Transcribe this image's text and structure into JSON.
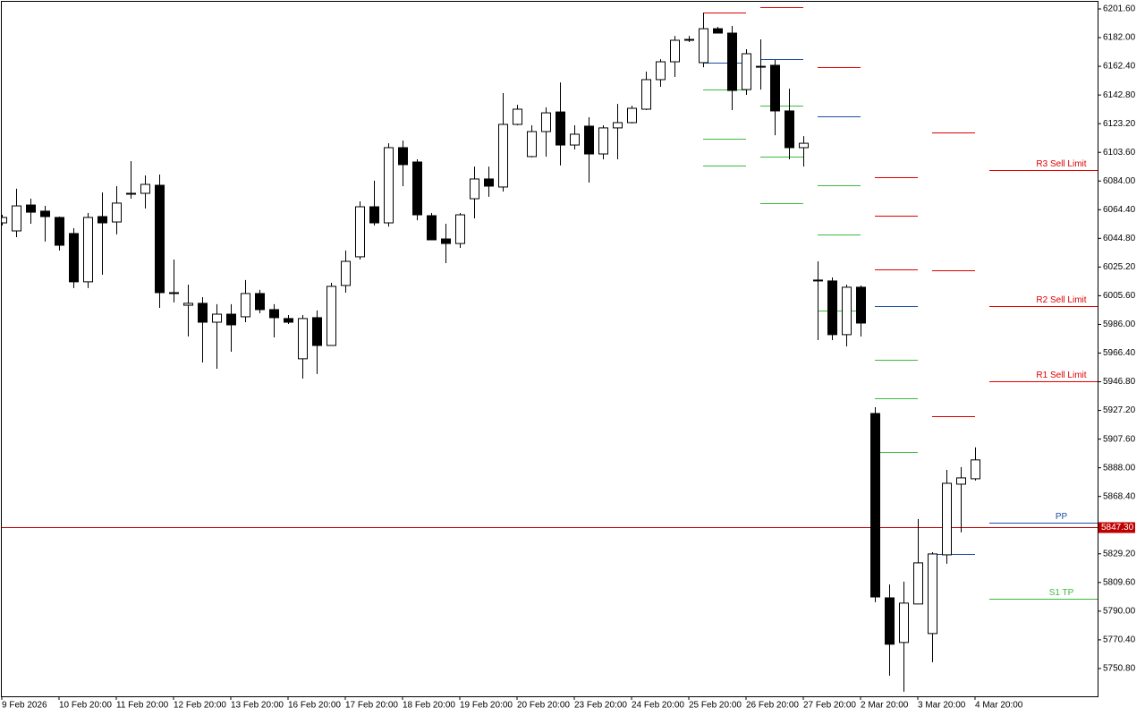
{
  "chart_data": {
    "type": "candlestick",
    "categories": [
      "9 Feb 2026",
      null,
      null,
      null,
      "10 Feb 20:00",
      null,
      null,
      null,
      "11 Feb 20:00",
      null,
      null,
      null,
      "12 Feb 20:00",
      null,
      null,
      null,
      "13 Feb 20:00",
      null,
      null,
      null,
      "16 Feb 20:00",
      null,
      null,
      null,
      "17 Feb 20:00",
      null,
      null,
      null,
      "18 Feb 20:00",
      null,
      null,
      null,
      "19 Feb 20:00",
      null,
      null,
      null,
      "20 Feb 20:00",
      null,
      null,
      null,
      "23 Feb 20:00",
      null,
      null,
      null,
      "24 Feb 20:00",
      null,
      null,
      null,
      "25 Feb 20:00",
      null,
      null,
      null,
      "26 Feb 20:00",
      null,
      null,
      null,
      "27 Feb 20:00",
      null,
      null,
      null,
      "2 Mar 20:00",
      null,
      null,
      null,
      "3 Mar 20:00",
      null,
      null,
      null,
      "4 Mar 20:00"
    ],
    "open": [
      6055.4,
      6049.9,
      6067.6,
      6063.4,
      6059.1,
      6048.1,
      6015.1,
      6059.7,
      6056.0,
      6075.0,
      6075.6,
      6081.1,
      6007.7,
      5999.1,
      6000.4,
      5987.5,
      5993.0,
      5991.2,
      6007.1,
      5996.1,
      5990.0,
      5962.5,
      5990.6,
      5971.6,
      6012.6,
      6032.2,
      6066.4,
      6055.4,
      6106.8,
      6097.0,
      6060.3,
      6044.4,
      6041.3,
      6071.9,
      6085.4,
      6079.9,
      6122.7,
      6100.7,
      6117.8,
      6131.2,
      6108.6,
      6121.5,
      6102.5,
      6120.3,
      6123.9,
      6133.1,
      6153.3,
      6165.5,
      6180.2,
      6164.9,
      6188.1,
      6185.1,
      6146.5,
      6161.8,
      6163.1,
      6131.9,
      6106.8,
      6016.3,
      6015.7,
      5979.0,
      6011.4,
      5925.1,
      5799.1,
      5768.6,
      5794.9,
      5774.7,
      5828.5,
      5876.8,
      5880.5
    ],
    "high": [
      6060.9,
      6078.7,
      6071.9,
      6067.0,
      6059.7,
      6051.7,
      6062.1,
      6076.2,
      6080.5,
      6097.6,
      6087.8,
      6088.4,
      6030.3,
      6013.2,
      6004.6,
      5999.8,
      5999.8,
      6016.3,
      6009.6,
      5999.8,
      5992.4,
      5992.4,
      5995.5,
      6014.4,
      6036.5,
      6070.1,
      6084.2,
      6109.8,
      6111.7,
      6098.8,
      6062.1,
      6054.8,
      6062.1,
      6093.9,
      6093.9,
      6144.1,
      6136.1,
      6122.1,
      6134.3,
      6151.4,
      6122.1,
      6127.6,
      6122.1,
      6136.7,
      6135.5,
      6158.8,
      6167.3,
      6183.2,
      6183.2,
      6199.1,
      6189.4,
      6190.0,
      6174.1,
      6180.8,
      6166.7,
      6147.1,
      6114.7,
      6029.1,
      6018.1,
      6013.2,
      6012.6,
      5929.4,
      5808.3,
      5810.2,
      5853.0,
      5830.3,
      5886.6,
      5888.5,
      5901.9
    ],
    "low": [
      6053.6,
      6045.6,
      6054.8,
      6042.6,
      6036.5,
      6010.8,
      6010.8,
      6019.9,
      6047.5,
      6071.9,
      6065.2,
      5997.3,
      6001.0,
      5977.7,
      5960.0,
      5955.7,
      5967.3,
      5987.5,
      5993.6,
      5977.1,
      5986.3,
      5949.0,
      5952.1,
      5971.6,
      6007.7,
      6030.3,
      6053.6,
      6052.9,
      6080.5,
      6057.2,
      6043.8,
      6027.9,
      6038.3,
      6058.5,
      6073.2,
      6076.8,
      6122.1,
      6100.1,
      6100.7,
      6094.6,
      6105.6,
      6082.9,
      6098.8,
      6098.8,
      6123.3,
      6132.5,
      6148.4,
      6155.1,
      6179.0,
      6161.8,
      6185.1,
      6132.5,
      6142.9,
      6146.5,
      6115.3,
      6098.8,
      6093.9,
      5975.3,
      5975.3,
      5971.0,
      5977.7,
      5796.1,
      5745.9,
      5734.9,
      5794.9,
      5755.1,
      5822.4,
      5843.8,
      5879.3
    ],
    "close": [
      6059.1,
      6067.0,
      6062.7,
      6059.7,
      6040.1,
      6015.1,
      6059.1,
      6055.4,
      6068.9,
      6075.6,
      6081.7,
      6007.7,
      6007.1,
      6000.4,
      5987.5,
      5993.0,
      5985.7,
      6007.1,
      5996.1,
      5990.6,
      5987.5,
      5990.0,
      5971.6,
      6012.0,
      6029.1,
      6066.4,
      6055.4,
      6106.8,
      6095.2,
      6060.9,
      6043.8,
      6041.3,
      6060.9,
      6085.4,
      6080.5,
      6122.7,
      6133.1,
      6117.8,
      6130.6,
      6108.6,
      6116.0,
      6102.5,
      6120.3,
      6123.9,
      6133.7,
      6153.3,
      6165.5,
      6180.2,
      6180.8,
      6188.1,
      6185.1,
      6145.9,
      6171.0,
      6162.4,
      6131.9,
      6106.8,
      6109.8,
      6015.7,
      5979.0,
      6011.4,
      5986.9,
      5799.7,
      5767.4,
      5795.5,
      5823.0,
      5829.1,
      5877.4,
      5881.1,
      5893.4
    ],
    "ylim": [
      5731.8,
      6206.5
    ],
    "yticks": [
      {
        "value": 6201.6,
        "label": "6201.60"
      },
      {
        "value": 6182.0,
        "label": "6182.00"
      },
      {
        "value": 6162.4,
        "label": "6162.40"
      },
      {
        "value": 6142.8,
        "label": "6142.80"
      },
      {
        "value": 6123.2,
        "label": "6123.20"
      },
      {
        "value": 6103.6,
        "label": "6103.60"
      },
      {
        "value": 6084.0,
        "label": "6084.00"
      },
      {
        "value": 6064.4,
        "label": "6064.40"
      },
      {
        "value": 6044.8,
        "label": "6044.80"
      },
      {
        "value": 6025.2,
        "label": "6025.20"
      },
      {
        "value": 6005.6,
        "label": "6005.60"
      },
      {
        "value": 5986.0,
        "label": "5986.00"
      },
      {
        "value": 5966.4,
        "label": "5966.40"
      },
      {
        "value": 5946.8,
        "label": "5946.80"
      },
      {
        "value": 5927.2,
        "label": "5927.20"
      },
      {
        "value": 5907.6,
        "label": "5907.60"
      },
      {
        "value": 5888.0,
        "label": "5888.00"
      },
      {
        "value": 5868.4,
        "label": "5868.40"
      },
      {
        "value": 5829.2,
        "label": "5829.20"
      },
      {
        "value": 5809.6,
        "label": "5809.60"
      },
      {
        "value": 5790.0,
        "label": "5790.00"
      },
      {
        "value": 5770.4,
        "label": "5770.40"
      },
      {
        "value": 5750.8,
        "label": "5750.80"
      }
    ],
    "up_color": "#ffffff",
    "down_color": "#000000",
    "current_price": {
      "value": 5847.3,
      "label": "5847.30",
      "color": "#c00000"
    },
    "pivot_groups": [
      {
        "start": 49,
        "end": 52,
        "values": [
          6199.1,
          6164.9,
          6146.5,
          6112.9,
          6094.6
        ],
        "colors": [
          "#e00000",
          "#1c4fa0",
          "#3dba3d",
          "#3dba3d",
          "#3dba3d"
        ]
      },
      {
        "start": 53,
        "end": 56,
        "values": [
          6202.8,
          6167.3,
          6135.5,
          6100.7,
          6068.9
        ],
        "colors": [
          "#e00000",
          "#1c4fa0",
          "#3dba3d",
          "#3dba3d",
          "#3dba3d"
        ]
      },
      {
        "start": 57,
        "end": 60,
        "values": [
          6161.8,
          6128.2,
          6081.1,
          6047.5,
          5995.5
        ],
        "colors": [
          "#e00000",
          "#1c4fa0",
          "#3dba3d",
          "#3dba3d",
          "#3dba3d"
        ]
      },
      {
        "start": 61,
        "end": 64,
        "values": [
          6086.6,
          6060.3,
          6023.6,
          5998.8,
          5962.0,
          5935.7,
          5899.0
        ],
        "colors": [
          "#e00000",
          "#e00000",
          "#e00000",
          "#1c4fa0",
          "#3dba3d",
          "#3dba3d",
          "#3dba3d"
        ]
      },
      {
        "start": 65,
        "end": 68,
        "values": [
          6117.2,
          6023.0,
          5923.3,
          5829.1
        ],
        "colors": [
          "#e00000",
          "#e00000",
          "#e00000",
          "#1c4fa0"
        ]
      }
    ],
    "pivot_labeled": {
      "start": 69,
      "values": [
        6091.5,
        5998.8,
        5947.4,
        5850.5,
        5798.5
      ],
      "labels": [
        "R3 Sell Limit",
        "R2 Sell Limit",
        "R1 Sell Limit",
        "PP",
        "S1 TP"
      ],
      "colors": [
        "#e00000",
        "#e00000",
        "#e00000",
        "#1c4fa0",
        "#3dba3d"
      ]
    }
  }
}
